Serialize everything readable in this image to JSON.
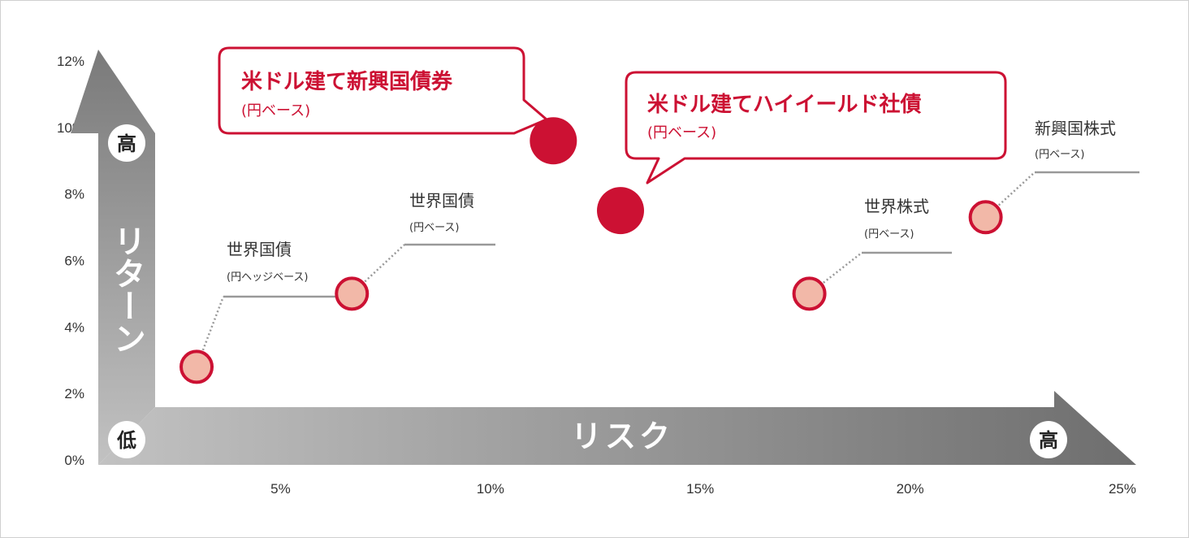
{
  "chart_data": {
    "type": "scatter",
    "x_ticks": [
      "5%",
      "10%",
      "15%",
      "20%",
      "25%"
    ],
    "y_ticks": [
      "0%",
      "2%",
      "4%",
      "6%",
      "8%",
      "10%",
      "12%"
    ],
    "xlim": [
      0,
      25
    ],
    "ylim": [
      0,
      12
    ],
    "x_axis_label": "リスク",
    "y_axis_label": "リターン",
    "low_label": "低",
    "high_label": "高",
    "points": [
      {
        "name": "世界国債",
        "sub": "(円ヘッジベース)",
        "x": 3.0,
        "y": 2.8,
        "highlight": false
      },
      {
        "name": "世界国債",
        "sub": "(円ベース)",
        "x": 6.7,
        "y": 5.0,
        "highlight": false
      },
      {
        "name": "米ドル建て新興国債券",
        "sub": "(円ベース)",
        "x": 11.5,
        "y": 9.6,
        "highlight": true
      },
      {
        "name": "米ドル建てハイイールド社債",
        "sub": "(円ベース)",
        "x": 13.1,
        "y": 7.5,
        "highlight": true
      },
      {
        "name": "世界株式",
        "sub": "(円ベース)",
        "x": 17.6,
        "y": 5.0,
        "highlight": false
      },
      {
        "name": "新興国株式",
        "sub": "(円ベース)",
        "x": 21.8,
        "y": 7.3,
        "highlight": false
      }
    ],
    "colors": {
      "highlight": "#cc1133",
      "normal_fill": "#f2b8a8",
      "normal_stroke": "#cc1133",
      "leader": "#999999"
    }
  }
}
